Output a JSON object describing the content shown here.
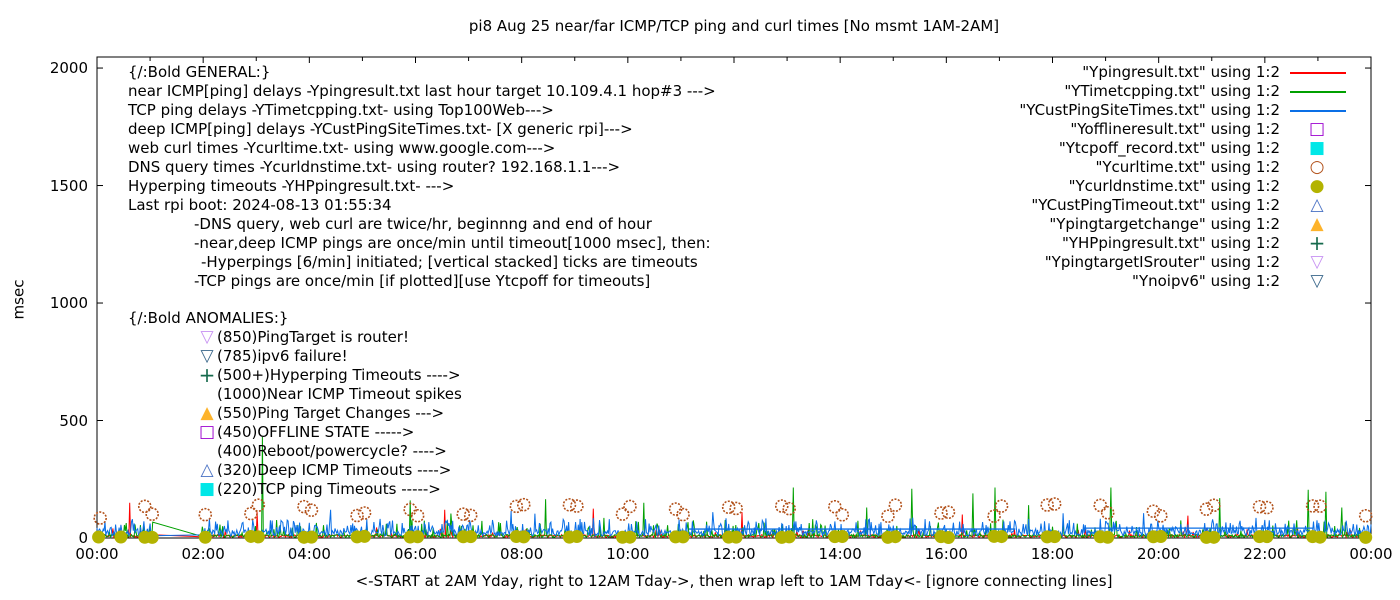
{
  "chart_data": {
    "type": "line",
    "title": "pi8 Aug 25  near/far ICMP/TCP ping and curl times [No msmt 1AM-2AM]",
    "ylabel": "msec",
    "xlabel": "<-START at 2AM Yday, right to 12AM Tday->, then wrap left to 1AM Tday<- [ignore connecting lines]",
    "ylim": [
      0,
      2047
    ],
    "xlim": [
      0,
      24
    ],
    "y_ticks": [
      "0",
      "500",
      "1000",
      "1500",
      "2000"
    ],
    "y_tick_values": [
      0,
      500,
      1000,
      1500,
      2000
    ],
    "x_ticks": [
      "00:00",
      "02:00",
      "04:00",
      "06:00",
      "08:00",
      "10:00",
      "12:00",
      "14:00",
      "16:00",
      "18:00",
      "20:00",
      "22:00",
      "00:00"
    ],
    "x_tick_hours": [
      0,
      2,
      4,
      6,
      8,
      10,
      12,
      14,
      16,
      18,
      20,
      22,
      24
    ],
    "grid": false,
    "legend_position": "top-right",
    "gap_hours": [
      1,
      2
    ],
    "series": [
      {
        "name": "Ypingresult.txt",
        "type": "line",
        "color": "#ff0000",
        "baseline": [
          3,
          14
        ],
        "spike_prob": 0.05,
        "spike_max": 35,
        "events": [
          {
            "h": 0.62,
            "v": 150
          },
          {
            "h": 3.02,
            "v": 110
          },
          {
            "h": 6.55,
            "v": 120
          },
          {
            "h": 9.35,
            "v": 125
          },
          {
            "h": 12.15,
            "v": 110
          },
          {
            "h": 16.3,
            "v": 100
          },
          {
            "h": 20.55,
            "v": 95
          }
        ]
      },
      {
        "name": "YTimetcpping.txt",
        "type": "line",
        "color": "#00a000",
        "baseline": [
          3,
          15
        ],
        "spike_prob": 0.12,
        "spike_max": 70,
        "spike2_prob": 0.02,
        "spike2_max": 60,
        "events": [
          {
            "h": 3.12,
            "v": 430
          },
          {
            "h": 5.9,
            "v": 160
          },
          {
            "h": 8.45,
            "v": 165
          },
          {
            "h": 10.3,
            "v": 150
          },
          {
            "h": 13.12,
            "v": 215
          },
          {
            "h": 14.5,
            "v": 130
          },
          {
            "h": 15.35,
            "v": 210
          },
          {
            "h": 16.5,
            "v": 190
          },
          {
            "h": 16.92,
            "v": 215
          },
          {
            "h": 17.55,
            "v": 140
          },
          {
            "h": 19.1,
            "v": 215
          },
          {
            "h": 21.15,
            "v": 170
          },
          {
            "h": 22.82,
            "v": 205
          },
          {
            "h": 23.15,
            "v": 197
          },
          {
            "h": 23.45,
            "v": 130
          }
        ]
      },
      {
        "name": "YCustPingSiteTimes.txt",
        "type": "line",
        "color": "#0a6fe6",
        "baseline": [
          8,
          34
        ],
        "spike_prob": 0.3,
        "spike_max": 55,
        "spike2_prob": 0.04,
        "spike2_max": 30,
        "events": [
          {
            "h": 4.4,
            "v": 120
          },
          {
            "h": 7.8,
            "v": 115
          },
          {
            "h": 11.6,
            "v": 110
          },
          {
            "h": 18.2,
            "v": 105
          }
        ],
        "flat_segments": [
          {
            "from": 11.15,
            "to": 17.3,
            "v": 38
          },
          {
            "from": 18.6,
            "to": 22.9,
            "v": 42
          }
        ]
      },
      {
        "name": "Ycurltime.txt",
        "type": "points",
        "marker": "open-circle",
        "color": "#b2511a",
        "hourly": {
          "offsets": [
            -0.1,
            0.04
          ],
          "range": [
            92,
            145
          ]
        },
        "extra": [
          {
            "h": 0.06,
            "v": 85
          }
        ]
      },
      {
        "name": "Ycurldnstime.txt",
        "type": "points",
        "marker": "filled-circle",
        "color": "#b3b300",
        "hourly": {
          "offsets": [
            -0.1,
            0.04
          ],
          "range": [
            2,
            7
          ]
        },
        "extra": [
          {
            "h": 0.03,
            "v": 4
          },
          {
            "h": 0.45,
            "v": 4
          }
        ]
      }
    ]
  },
  "legend": {
    "items": [
      {
        "label": "\"Ypingresult.txt\" using 1:2",
        "marker": "line",
        "color": "#ff0000"
      },
      {
        "label": "\"YTimetcpping.txt\" using 1:2",
        "marker": "line",
        "color": "#00a000"
      },
      {
        "label": "\"YCustPingSiteTimes.txt\" using 1:2",
        "marker": "line",
        "color": "#0a6fe6"
      },
      {
        "label": "\"Yofflineresult.txt\" using 1:2",
        "marker": "open-square",
        "color": "#9c00cf"
      },
      {
        "label": "\"Ytcpoff_record.txt\" using 1:2",
        "marker": "filled-square",
        "color": "#00e7e7"
      },
      {
        "label": "\"Ycurltime.txt\" using 1:2",
        "marker": "open-circle",
        "color": "#b2511a"
      },
      {
        "label": "\"Ycurldnstime.txt\" using 1:2",
        "marker": "filled-circle",
        "color": "#b3b300"
      },
      {
        "label": "\"YCustPingTimeout.txt\" using 1:2",
        "marker": "open-triangle-up",
        "color": "#4a72c4"
      },
      {
        "label": "\"Ypingtargetchange\" using 1:2",
        "marker": "filled-triangle-up",
        "color": "#fdb32b"
      },
      {
        "label": "\"YHPpingresult.txt\" using 1:2",
        "marker": "plus",
        "color": "#156a4c"
      },
      {
        "label": "\"YpingtargetISrouter\" using 1:2",
        "marker": "open-triangle-down",
        "color": "#c791f2"
      },
      {
        "label": "\"Ynoipv6\" using 1:2",
        "marker": "open-triangle-down",
        "color": "#3a678a"
      }
    ]
  },
  "notes": {
    "general": {
      "heading": "{/:Bold GENERAL:}",
      "lines": [
        {
          "indent": 0,
          "text": "near ICMP[ping] delays -Ypingresult.txt last hour target 10.109.4.1 hop#3 --->"
        },
        {
          "indent": 0,
          "text": "TCP ping delays -YTimetcpping.txt- using Top100Web--->"
        },
        {
          "indent": 0,
          "text": "deep ICMP[ping] delays -YCustPingSiteTimes.txt- [X generic rpi]--->"
        },
        {
          "indent": 0,
          "text": "web curl times -Ycurltime.txt- using www.google.com--->"
        },
        {
          "indent": 0,
          "text": "DNS query times -Ycurldnstime.txt- using router? 192.168.1.1--->"
        },
        {
          "indent": 0,
          "text": "Hyperping timeouts -YHPpingresult.txt- --->"
        },
        {
          "indent": 0,
          "text": "Last rpi boot: 2024-08-13 01:55:34"
        },
        {
          "indent": 1,
          "text": "-DNS query, web curl are twice/hr, beginnng and end of hour"
        },
        {
          "indent": 1,
          "text": "-near,deep ICMP pings are once/min until timeout[1000 msec], then:"
        },
        {
          "indent": 2,
          "text": "-Hyperpings [6/min] initiated; [vertical stacked] ticks are timeouts"
        },
        {
          "indent": 1,
          "text": "-TCP pings are once/min [if plotted][use Ytcpoff for timeouts]"
        }
      ]
    },
    "anomalies": {
      "heading": "{/:Bold ANOMALIES:}",
      "items": [
        {
          "marker": "open-triangle-down",
          "color": "#c791f2",
          "label": "(850)PingTarget is router!"
        },
        {
          "marker": "open-triangle-down",
          "color": "#3a678a",
          "label": "(785)ipv6 failure!"
        },
        {
          "marker": "plus",
          "color": "#156a4c",
          "label": "(500+)Hyperping Timeouts ---->"
        },
        {
          "marker": "none",
          "color": "",
          "label": "(1000)Near ICMP Timeout spikes"
        },
        {
          "marker": "filled-triangle-up",
          "color": "#fdb32b",
          "label": "(550)Ping Target Changes --->"
        },
        {
          "marker": "open-square",
          "color": "#9c00cf",
          "label": "(450)OFFLINE STATE ----->"
        },
        {
          "marker": "none",
          "color": "",
          "label": "(400)Reboot/powercycle? ---->"
        },
        {
          "marker": "open-triangle-up",
          "color": "#4a72c4",
          "label": "(320)Deep ICMP Timeouts ---->"
        },
        {
          "marker": "filled-square",
          "color": "#00e7e7",
          "label": "(220)TCP ping Timeouts ----->"
        }
      ]
    }
  }
}
